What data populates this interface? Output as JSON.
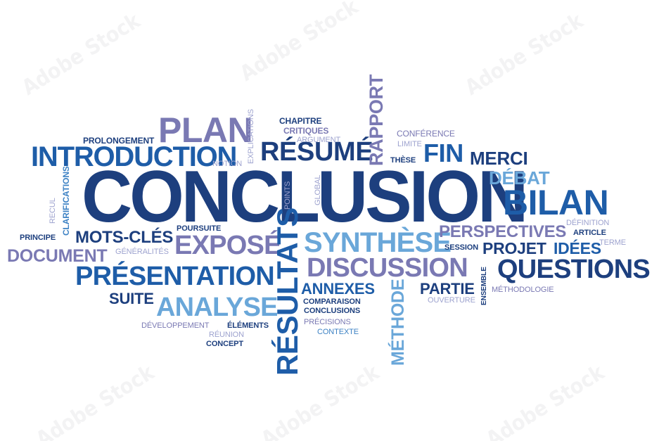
{
  "words": {
    "conclusion": "CONCLUSION",
    "plan": "PLAN",
    "introduction": "INTRODUCTION",
    "resume": "RÉSUMÉ",
    "rapport": "RAPPORT",
    "fin": "FIN",
    "merci": "MERCI",
    "debat": "DÉBAT",
    "bilan": "BILAN",
    "synthese": "SYNTHÈSE",
    "resultats": "RÉSULTATS",
    "discussion": "DISCUSSION",
    "questions": "QUESTIONS",
    "presentation": "PRÉSENTATION",
    "analyse": "ANALYSE",
    "expose": "EXPOSÉ",
    "mots_cles": "MOTS-CLÉS",
    "document": "DOCUMENT",
    "perspectives": "PERSPECTIVES",
    "projet": "PROJET",
    "idees": "IDÉES",
    "annexes": "ANNEXES",
    "partie": "PARTIE",
    "suite": "SUITE",
    "methode": "MÉTHODE",
    "prolongement": "PROLONGEMENT",
    "explications": "EXPLICATIONS",
    "chapitre": "CHAPITRE",
    "critiques": "CRITIQUES",
    "argument": "ARGUMENT",
    "conference": "CONFÉRENCE",
    "limite": "LIMITE",
    "these": "THÈSE",
    "notion": "NOTION",
    "global": "GLOBAL",
    "points": "POINTS",
    "recul": "RECUL",
    "clarifications": "CLARIFICATIONS",
    "principe": "PRINCIPE",
    "poursuite": "POURSUITE",
    "generalites": "GÉNÉRALITÉS",
    "definition": "DÉFINITION",
    "article": "ARTICLE",
    "terme": "TERME",
    "session": "SESSION",
    "ensemble": "ENSEMBLE",
    "methodologie": "MÉTHODOLOGIE",
    "ouverture": "OUVERTURE",
    "comparaison": "COMPARAISON",
    "conclusions": "CONCLUSIONS",
    "precisions": "PRÉCISIONS",
    "contexte": "CONTEXTE",
    "developpement": "DÉVELOPPEMENT",
    "elements": "ÉLÉMENTS",
    "reunion": "RÉUNION",
    "concept": "CONCEPT"
  },
  "watermark": "Adobe Stock",
  "colors": {
    "navy": "#1d3f7e",
    "blue": "#1e5da8",
    "mid": "#3d82c4",
    "sky": "#6aa7d9",
    "purple": "#7a79b3",
    "lilac": "#9ea3cf"
  }
}
